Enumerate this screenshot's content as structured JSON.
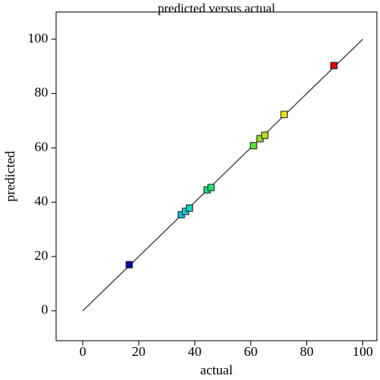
{
  "chart_data": {
    "type": "scatter",
    "title": "predicted versus actual",
    "x_label": "actual",
    "y_label": "predicted",
    "x": [
      16.6,
      35.2,
      36.7,
      38.1,
      44.4,
      45.8,
      61.0,
      63.3,
      65.0,
      71.9,
      89.7
    ],
    "values": [
      17.0,
      35.4,
      36.6,
      37.8,
      44.5,
      45.4,
      60.8,
      63.4,
      64.6,
      72.3,
      90.3
    ],
    "colors": [
      "#0000b0",
      "#00b8e0",
      "#00d0d0",
      "#00d8c0",
      "#10e080",
      "#20e070",
      "#60e030",
      "#90e020",
      "#b0e020",
      "#f0e020",
      "#e00000"
    ],
    "reference_line": {
      "x": [
        0,
        100
      ],
      "y": [
        0,
        100
      ]
    },
    "xlim": [
      -9.5,
      105
    ],
    "ylim": [
      -11,
      110
    ],
    "xticks": [
      0,
      20,
      40,
      60,
      80,
      100
    ],
    "yticks": [
      0,
      20,
      40,
      60,
      80,
      100
    ]
  }
}
